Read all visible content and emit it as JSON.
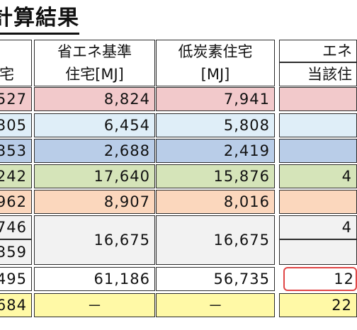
{
  "title": "計算結果",
  "colors": {
    "row1": "#f2c9cb",
    "row2": "#dfeef8",
    "row3": "#b9cde8",
    "row4": "#d5e4b9",
    "row5": "#fbd7bd",
    "row6": "#f2f2f2",
    "row9": "#fff9a6",
    "highlight": "#e04545"
  },
  "headers": {
    "col0": "宅",
    "col1": [
      "省エネ基準",
      "住宅[MJ]"
    ],
    "col2": [
      "低炭素住宅",
      "[MJ]"
    ],
    "col3": [
      "エネ",
      "当該住"
    ]
  },
  "rows": [
    {
      "c0": "527",
      "c1": "8,824",
      "c2": "7,941",
      "c3": ""
    },
    {
      "c0": "305",
      "c1": "6,454",
      "c2": "5,808",
      "c3": ""
    },
    {
      "c0": "353",
      "c1": "2,688",
      "c2": "2,419",
      "c3": ""
    },
    {
      "c0": "242",
      "c1": "17,640",
      "c2": "15,876",
      "c3": "4"
    },
    {
      "c0": "962",
      "c1": "8,907",
      "c2": "8,016",
      "c3": ""
    },
    {
      "c0": "746",
      "c1": "16,675",
      "c2": "16,675",
      "c3": "4"
    },
    {
      "c0": "359",
      "c1": "",
      "c2": "",
      "c3": ""
    },
    {
      "c0": "495",
      "c1": "61,186",
      "c2": "56,735",
      "c3": "12"
    },
    {
      "c0": "684",
      "c1": "－",
      "c2": "－",
      "c3": "22"
    }
  ]
}
